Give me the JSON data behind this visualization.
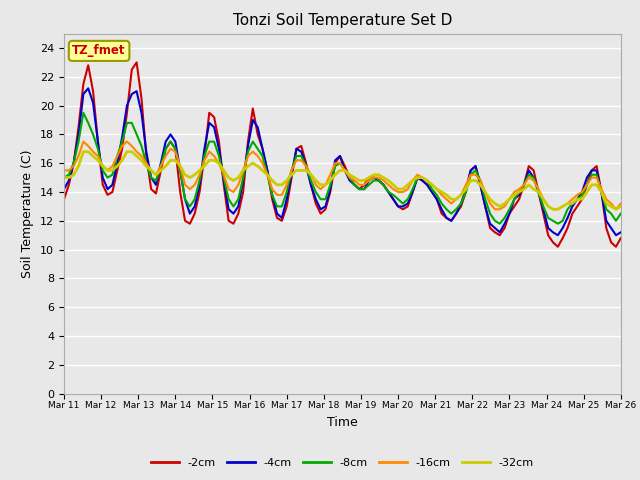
{
  "title": "Tonzi Soil Temperature Set D",
  "xlabel": "Time",
  "ylabel": "Soil Temperature (C)",
  "fig_bg_color": "#e8e8e8",
  "plot_bg_color": "#e8e8e8",
  "ylim": [
    0,
    25
  ],
  "yticks": [
    0,
    2,
    4,
    6,
    8,
    10,
    12,
    14,
    16,
    18,
    20,
    22,
    24
  ],
  "legend_label": "TZ_fmet",
  "series_labels": [
    "-2cm",
    "-4cm",
    "-8cm",
    "-16cm",
    "-32cm"
  ],
  "series_colors": [
    "#cc0000",
    "#0000cc",
    "#00aa00",
    "#ff8800",
    "#cccc00"
  ],
  "line_widths": [
    1.5,
    1.5,
    1.5,
    1.5,
    2.0
  ],
  "x_tick_labels": [
    "Mar 11",
    "Mar 12",
    "Mar 13",
    "Mar 14",
    "Mar 15",
    "Mar 16",
    "Mar 17",
    "Mar 18",
    "Mar 19",
    "Mar 20",
    "Mar 21",
    "Mar 22",
    "Mar 23",
    "Mar 24",
    "Mar 25",
    "Mar 26"
  ],
  "minus2cm": [
    13.5,
    14.5,
    16.0,
    18.5,
    21.5,
    22.8,
    21.0,
    17.5,
    14.5,
    13.8,
    14.0,
    15.5,
    17.0,
    19.5,
    22.5,
    23.0,
    20.5,
    16.5,
    14.2,
    13.9,
    15.5,
    17.0,
    17.5,
    17.0,
    14.0,
    12.0,
    11.8,
    12.5,
    14.0,
    16.5,
    19.5,
    19.2,
    17.5,
    14.5,
    12.0,
    11.8,
    12.5,
    14.0,
    17.5,
    19.8,
    18.0,
    17.0,
    15.5,
    13.5,
    12.2,
    12.0,
    13.0,
    15.0,
    17.0,
    17.2,
    16.0,
    14.5,
    13.2,
    12.5,
    12.8,
    14.0,
    16.0,
    16.5,
    15.8,
    15.0,
    14.5,
    14.2,
    14.5,
    15.0,
    15.0,
    14.8,
    14.5,
    14.0,
    13.5,
    13.0,
    12.8,
    13.0,
    14.0,
    15.0,
    14.8,
    14.5,
    14.0,
    13.5,
    12.5,
    12.2,
    12.0,
    12.5,
    13.0,
    14.0,
    15.5,
    15.8,
    14.5,
    13.0,
    11.5,
    11.2,
    11.0,
    11.5,
    12.5,
    13.0,
    13.5,
    14.5,
    15.8,
    15.5,
    14.0,
    12.5,
    11.0,
    10.5,
    10.2,
    10.8,
    11.5,
    12.5,
    13.0,
    13.5,
    14.5,
    15.5,
    15.8,
    14.0,
    11.5,
    10.5,
    10.2,
    10.8
  ],
  "minus4cm": [
    14.2,
    14.8,
    16.0,
    18.0,
    20.8,
    21.2,
    20.2,
    17.5,
    15.0,
    14.2,
    14.5,
    16.0,
    17.8,
    20.0,
    20.8,
    21.0,
    19.5,
    16.8,
    15.0,
    14.5,
    16.0,
    17.5,
    18.0,
    17.5,
    15.5,
    13.5,
    12.5,
    13.0,
    14.5,
    17.0,
    18.8,
    18.5,
    17.0,
    14.8,
    12.8,
    12.5,
    13.0,
    14.8,
    17.2,
    19.0,
    18.5,
    17.0,
    15.5,
    13.8,
    12.5,
    12.2,
    13.5,
    15.2,
    17.0,
    16.8,
    15.8,
    14.5,
    13.5,
    12.8,
    13.0,
    14.2,
    16.2,
    16.5,
    15.5,
    14.8,
    14.5,
    14.2,
    14.2,
    14.8,
    15.0,
    14.8,
    14.5,
    14.0,
    13.5,
    13.0,
    13.0,
    13.2,
    14.0,
    15.0,
    14.8,
    14.5,
    14.0,
    13.5,
    12.8,
    12.2,
    12.0,
    12.5,
    13.2,
    14.2,
    15.5,
    15.8,
    14.5,
    13.0,
    11.8,
    11.5,
    11.2,
    11.8,
    12.5,
    13.5,
    13.8,
    14.5,
    15.5,
    15.0,
    14.0,
    12.8,
    11.5,
    11.2,
    11.0,
    11.5,
    12.2,
    13.0,
    13.5,
    14.0,
    15.0,
    15.5,
    15.5,
    14.0,
    12.0,
    11.5,
    11.0,
    11.2
  ],
  "minus8cm": [
    15.0,
    15.2,
    16.0,
    17.5,
    19.5,
    18.8,
    18.0,
    17.0,
    15.5,
    15.0,
    15.2,
    16.5,
    17.5,
    18.8,
    18.8,
    18.0,
    17.2,
    16.0,
    15.0,
    14.8,
    15.8,
    17.0,
    17.5,
    17.0,
    15.5,
    13.5,
    13.0,
    13.5,
    14.8,
    16.5,
    17.5,
    17.5,
    16.5,
    15.0,
    13.5,
    13.0,
    13.5,
    15.0,
    16.8,
    17.5,
    17.0,
    16.5,
    15.2,
    13.8,
    13.0,
    13.0,
    14.0,
    15.5,
    16.5,
    16.5,
    15.8,
    14.8,
    14.0,
    13.5,
    13.5,
    14.5,
    15.8,
    16.0,
    15.5,
    15.0,
    14.5,
    14.2,
    14.2,
    14.5,
    14.8,
    14.8,
    14.5,
    14.0,
    13.8,
    13.5,
    13.2,
    13.5,
    14.2,
    15.0,
    15.0,
    14.8,
    14.2,
    13.8,
    13.2,
    12.8,
    12.5,
    12.8,
    13.2,
    14.0,
    15.2,
    15.5,
    14.8,
    13.5,
    12.5,
    12.0,
    11.8,
    12.2,
    12.8,
    13.5,
    14.0,
    14.5,
    15.2,
    15.0,
    14.0,
    13.0,
    12.2,
    12.0,
    11.8,
    12.0,
    12.8,
    13.2,
    13.5,
    13.8,
    14.5,
    15.2,
    15.2,
    14.0,
    12.8,
    12.5,
    12.0,
    12.5
  ],
  "minus16cm": [
    15.5,
    15.5,
    15.8,
    16.5,
    17.5,
    17.2,
    16.8,
    16.5,
    15.8,
    15.5,
    15.8,
    16.5,
    17.2,
    17.5,
    17.2,
    16.8,
    16.5,
    16.0,
    15.5,
    15.2,
    15.8,
    16.5,
    17.0,
    16.8,
    15.8,
    14.5,
    14.2,
    14.5,
    15.2,
    16.2,
    16.8,
    16.5,
    16.0,
    15.2,
    14.2,
    14.0,
    14.5,
    15.5,
    16.5,
    16.8,
    16.5,
    16.0,
    15.2,
    14.2,
    13.8,
    13.8,
    14.5,
    15.5,
    16.2,
    16.2,
    15.8,
    15.2,
    14.5,
    14.2,
    14.5,
    15.2,
    16.0,
    16.0,
    15.5,
    15.0,
    14.8,
    14.5,
    14.5,
    14.8,
    15.0,
    15.0,
    14.8,
    14.5,
    14.2,
    14.0,
    14.0,
    14.2,
    14.8,
    15.2,
    15.0,
    14.8,
    14.5,
    14.2,
    13.8,
    13.5,
    13.2,
    13.5,
    13.8,
    14.5,
    15.2,
    15.2,
    14.8,
    14.0,
    13.2,
    12.8,
    12.8,
    13.0,
    13.5,
    14.0,
    14.2,
    14.5,
    15.0,
    14.8,
    14.2,
    13.5,
    13.0,
    12.8,
    12.8,
    13.0,
    13.2,
    13.5,
    13.8,
    14.0,
    14.5,
    15.0,
    15.0,
    14.2,
    13.5,
    13.2,
    12.8,
    13.2
  ],
  "minus32cm": [
    15.0,
    15.0,
    15.2,
    15.8,
    16.8,
    16.8,
    16.5,
    16.2,
    15.8,
    15.5,
    15.5,
    15.8,
    16.2,
    16.8,
    16.8,
    16.5,
    16.2,
    15.8,
    15.5,
    15.2,
    15.5,
    15.8,
    16.2,
    16.2,
    15.8,
    15.2,
    15.0,
    15.2,
    15.5,
    15.8,
    16.2,
    16.2,
    16.0,
    15.5,
    15.0,
    14.8,
    15.0,
    15.5,
    15.8,
    16.0,
    15.8,
    15.5,
    15.2,
    14.8,
    14.5,
    14.5,
    14.8,
    15.2,
    15.5,
    15.5,
    15.5,
    15.2,
    14.8,
    14.5,
    14.5,
    14.8,
    15.2,
    15.5,
    15.5,
    15.2,
    15.0,
    14.8,
    14.8,
    15.0,
    15.2,
    15.2,
    15.0,
    14.8,
    14.5,
    14.2,
    14.2,
    14.5,
    14.8,
    15.0,
    15.0,
    14.8,
    14.5,
    14.2,
    14.0,
    13.8,
    13.5,
    13.5,
    13.8,
    14.2,
    14.8,
    14.8,
    14.5,
    14.0,
    13.5,
    13.2,
    13.0,
    13.2,
    13.5,
    13.8,
    14.0,
    14.2,
    14.5,
    14.2,
    14.0,
    13.5,
    13.0,
    12.8,
    12.8,
    13.0,
    13.2,
    13.2,
    13.5,
    13.5,
    14.0,
    14.5,
    14.5,
    14.0,
    13.2,
    13.0,
    12.8,
    13.0
  ]
}
